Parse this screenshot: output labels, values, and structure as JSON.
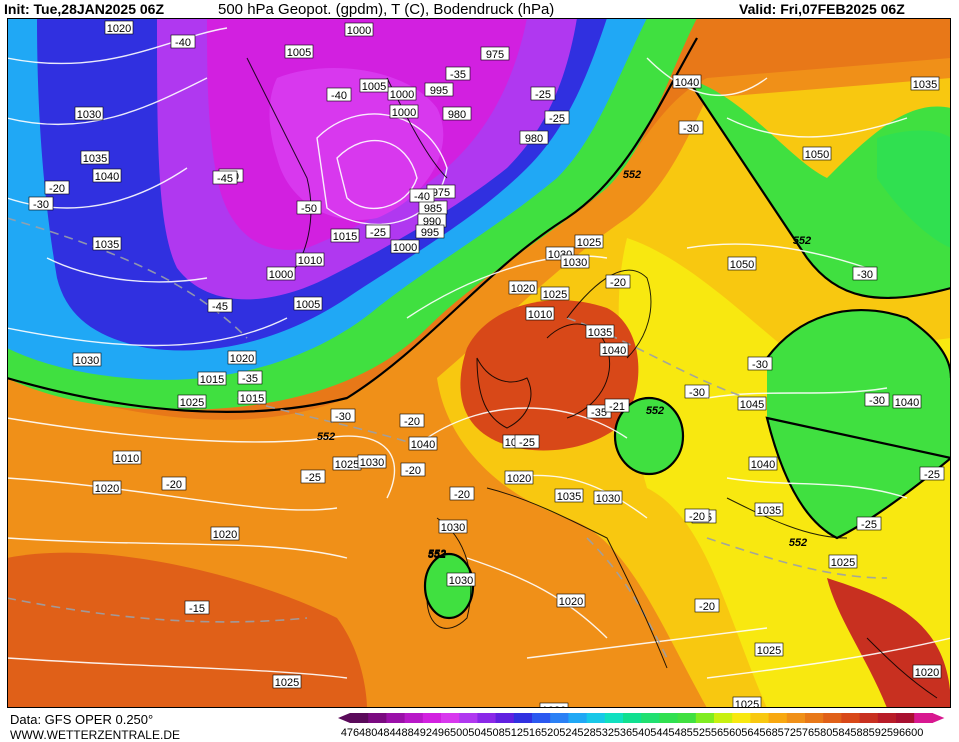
{
  "header": {
    "init": "Init: Tue,28JAN2025 06Z",
    "title": "500 hPa Geopot. (gpdm), T (C), Bodendruck (hPa)",
    "valid": "Valid: Fri,07FEB2025 06Z"
  },
  "footer": {
    "source": "Data: GFS OPER 0.250°",
    "site": "WWW.WETTERZENTRALE.DE"
  },
  "legend": {
    "values": [
      "476",
      "480",
      "484",
      "488",
      "492",
      "496",
      "500",
      "504",
      "508",
      "512",
      "516",
      "520",
      "524",
      "528",
      "532",
      "536",
      "540",
      "544",
      "548",
      "552",
      "556",
      "560",
      "564",
      "568",
      "572",
      "576",
      "580",
      "584",
      "588",
      "592",
      "596",
      "600"
    ],
    "colors": [
      "#5a0a5a",
      "#7a0a80",
      "#9a10a8",
      "#b818c8",
      "#d220e0",
      "#d838ee",
      "#b038f0",
      "#8a28e8",
      "#6020e0",
      "#3030e0",
      "#2a58f0",
      "#2a80f5",
      "#20a8f5",
      "#18c8e8",
      "#10e0c0",
      "#10e090",
      "#20e070",
      "#30e050",
      "#40e040",
      "#80ec20",
      "#c8f010",
      "#f8e810",
      "#f8c810",
      "#f8a810",
      "#f09018",
      "#e87818",
      "#e06018",
      "#d84818",
      "#c83020",
      "#b81c28",
      "#a81030",
      "#d81890"
    ]
  },
  "pressure_labels": [
    "1020",
    "1000",
    "1005",
    "1000",
    "975",
    "995",
    "1005",
    "1000",
    "980",
    "980",
    "975",
    "985",
    "990",
    "995",
    "1000",
    "1015",
    "1010",
    "1000",
    "1005",
    "1015",
    "1020",
    "1025",
    "1030",
    "1035",
    "1040",
    "1035",
    "1030",
    "1015",
    "1010",
    "1020",
    "1025",
    "1030",
    "1030",
    "1025",
    "1010",
    "1025",
    "1030",
    "1035",
    "1040",
    "1045",
    "1040",
    "1050",
    "1035",
    "1050",
    "1040",
    "1020",
    "1040",
    "1035",
    "1030",
    "1035",
    "1030",
    "1030",
    "1020",
    "1025",
    "1025",
    "1020",
    "1025",
    "1020",
    "1020",
    "1030",
    "1040",
    "1020",
    "1025"
  ],
  "temp_labels": [
    "-40",
    "-40",
    "-35",
    "-30",
    "-25",
    "-45",
    "-50",
    "-45",
    "-40",
    "-25",
    "-35",
    "-30",
    "-25",
    "-20",
    "-30",
    "-25",
    "-20",
    "-35",
    "-30",
    "-30",
    "-30",
    "-30",
    "-25",
    "-20",
    "-20",
    "-25",
    "-20",
    "-21",
    "-25",
    "-15",
    "-20",
    "-30",
    "-20",
    "-20",
    "-25"
  ],
  "height_labels": [
    "552",
    "552",
    "552",
    "552",
    "552",
    "552",
    "552"
  ]
}
